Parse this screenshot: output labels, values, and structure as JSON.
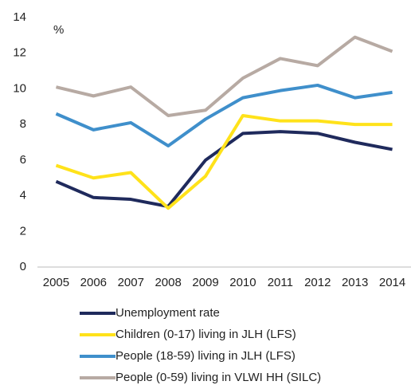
{
  "chart_data": {
    "type": "line",
    "y_label": "%",
    "categories": [
      "2005",
      "2006",
      "2007",
      "2008",
      "2009",
      "2010",
      "2011",
      "2012",
      "2013",
      "2014"
    ],
    "series": [
      {
        "name": "Unemployment rate",
        "color": "#1f2a5c",
        "values": [
          4.8,
          3.9,
          3.8,
          3.4,
          6.0,
          7.5,
          7.6,
          7.5,
          7.0,
          6.6
        ]
      },
      {
        "name": "Children (0-17) living in JLH (LFS)",
        "color": "#ffe21a",
        "values": [
          5.7,
          5.0,
          5.3,
          3.3,
          5.1,
          8.5,
          8.2,
          8.2,
          8.0,
          8.0
        ]
      },
      {
        "name": "People (18-59) living in JLH (LFS)",
        "color": "#3f8fcb",
        "values": [
          8.6,
          7.7,
          8.1,
          6.8,
          8.3,
          9.5,
          9.9,
          10.2,
          9.5,
          9.8
        ]
      },
      {
        "name": "People (0-59) living in VLWI HH (SILC)",
        "color": "#b7aaa3",
        "values": [
          10.1,
          9.6,
          10.1,
          8.5,
          8.8,
          10.6,
          11.7,
          11.3,
          12.9,
          12.1
        ]
      }
    ],
    "ylim": [
      0,
      14
    ],
    "yticks": [
      0,
      2,
      4,
      6,
      8,
      10,
      12,
      14
    ],
    "grid": false,
    "legend": "bottom"
  }
}
